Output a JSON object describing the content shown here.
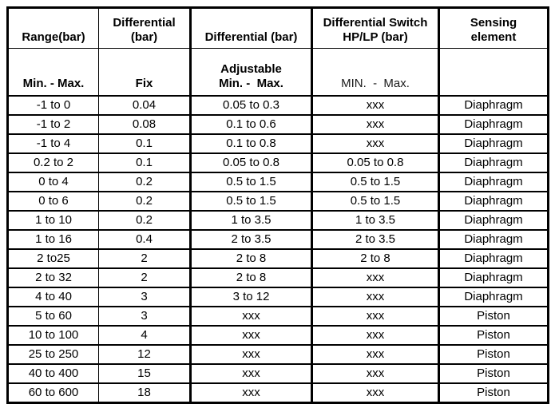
{
  "page": {
    "background_color": "#ffffff",
    "border_color": "#000000",
    "text_color": "#000000"
  },
  "table": {
    "header": {
      "range_title": "Range(bar)",
      "range_sub": "Min. - Max.",
      "diff_fix_title_line1": "Differential",
      "diff_fix_title_line2": "(bar)",
      "diff_fix_sub": "Fix",
      "diff_adj_title": "Differential (bar)",
      "diff_adj_sub_line1": "Adjustable",
      "diff_adj_sub_line2": "Min. -  Max.",
      "diff_switch_title_line1": "Differential Switch",
      "diff_switch_title_line2": "HP/LP (bar)",
      "diff_switch_sub": "MIN.  -  Max.",
      "sensing_title_line1": "Sensing",
      "sensing_title_line2": "element",
      "sensing_sub": ""
    },
    "rows": [
      [
        "-1 to 0",
        "0.04",
        "0.05 to 0.3",
        "xxx",
        "Diaphragm"
      ],
      [
        "-1 to 2",
        "0.08",
        "0.1 to 0.6",
        "xxx",
        "Diaphragm"
      ],
      [
        "-1 to 4",
        "0.1",
        "0.1 to 0.8",
        "xxx",
        "Diaphragm"
      ],
      [
        "0.2 to 2",
        "0.1",
        "0.05 to 0.8",
        "0.05 to 0.8",
        "Diaphragm"
      ],
      [
        "0 to 4",
        "0.2",
        "0.5 to 1.5",
        "0.5 to 1.5",
        "Diaphragm"
      ],
      [
        "0 to 6",
        "0.2",
        "0.5 to 1.5",
        "0.5 to 1.5",
        "Diaphragm"
      ],
      [
        "1 to 10",
        "0.2",
        "1 to 3.5",
        "1 to 3.5",
        "Diaphragm"
      ],
      [
        "1 to 16",
        "0.4",
        "2 to 3.5",
        "2 to 3.5",
        "Diaphragm"
      ],
      [
        "2 to25",
        "2",
        "2 to 8",
        "2 to 8",
        "Diaphragm"
      ],
      [
        "2 to 32",
        "2",
        "2 to 8",
        "xxx",
        "Diaphragm"
      ],
      [
        "4 to 40",
        "3",
        "3 to 12",
        "xxx",
        "Diaphragm"
      ],
      [
        "5 to 60",
        "3",
        "xxx",
        "xxx",
        "Piston"
      ],
      [
        "10 to 100",
        "4",
        "xxx",
        "xxx",
        "Piston"
      ],
      [
        "25 to 250",
        "12",
        "xxx",
        "xxx",
        "Piston"
      ],
      [
        "40 to 400",
        "15",
        "xxx",
        "xxx",
        "Piston"
      ],
      [
        "60 to 600",
        "18",
        "xxx",
        "xxx",
        "Piston"
      ]
    ]
  }
}
